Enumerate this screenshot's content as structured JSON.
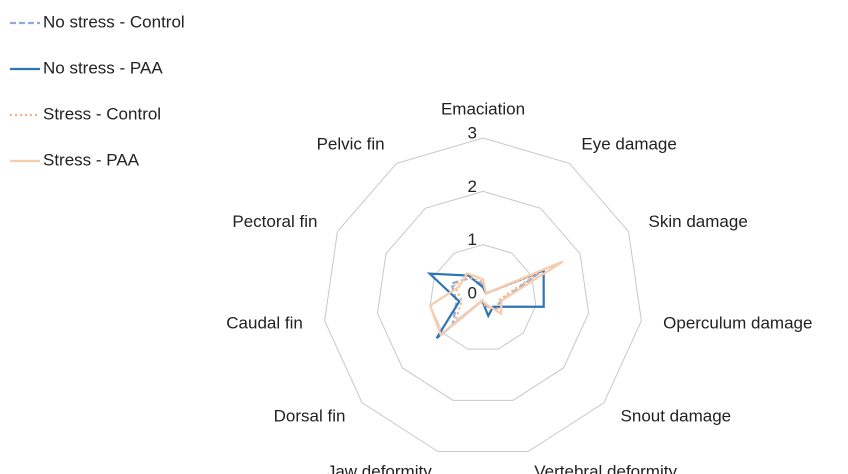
{
  "chart_data": {
    "type": "radar",
    "categories": [
      "Emaciation",
      "Eye damage",
      "Skin damage",
      "Operculum damage",
      "Snout damage",
      "Vertebral deformity",
      "Jaw deformity",
      "Dorsal fin",
      "Caudal fin",
      "Pectoral fin",
      "Pelvic fin"
    ],
    "series": [
      {
        "name": "No stress - Control",
        "color": "#8faadc",
        "dash": "dashed",
        "values": [
          0.25,
          0.1,
          1.2,
          0.35,
          0.3,
          0.15,
          0.05,
          0.75,
          0.5,
          0.65,
          0.45
        ]
      },
      {
        "name": "No stress - PAA",
        "color": "#2e75b6",
        "dash": "solid",
        "values": [
          0.2,
          0.1,
          1.25,
          1.15,
          0.25,
          0.35,
          0.05,
          1.15,
          0.45,
          1.1,
          0.5
        ]
      },
      {
        "name": "Stress - Control",
        "color": "#f4b183",
        "dash": "dotted",
        "values": [
          0.3,
          0.1,
          1.15,
          0.3,
          0.35,
          0.15,
          0.05,
          0.7,
          0.4,
          0.6,
          0.45
        ]
      },
      {
        "name": "Stress - PAA",
        "color": "#f8cbad",
        "dash": "solid",
        "values": [
          0.35,
          0.1,
          1.65,
          0.35,
          0.45,
          0.1,
          0.05,
          1.05,
          1.0,
          0.5,
          0.55
        ]
      }
    ],
    "rlim": [
      0,
      3
    ],
    "rticks": [
      0,
      1,
      2,
      3
    ],
    "grid": true,
    "legend": "top-left"
  }
}
